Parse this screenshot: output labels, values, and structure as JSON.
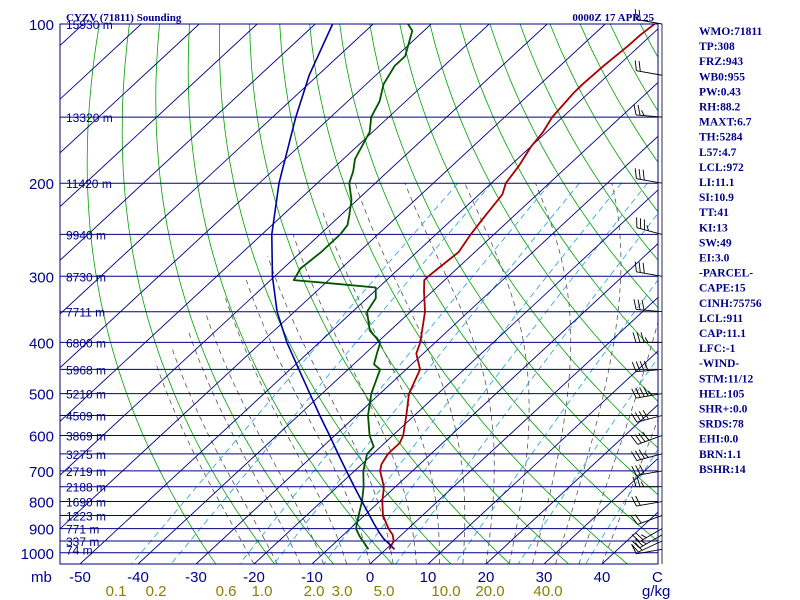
{
  "chart_data": {
    "type": "line",
    "title_left": "CYZV (71811) Sounding",
    "title_right": "0000Z 17 APR 25",
    "y_axis": {
      "scale": "log",
      "unit": "mb",
      "ticks": [
        100,
        200,
        300,
        400,
        500,
        600,
        700,
        800,
        900,
        1000
      ]
    },
    "x_axis": {
      "skew": true,
      "unit": "C",
      "ticks": [
        -50,
        -40,
        -30,
        -20,
        -10,
        0,
        10,
        20,
        30,
        40
      ]
    },
    "mixing_ratio": {
      "unit": "g/kg",
      "ticks": [
        "0.1",
        "0.2",
        "0.6",
        "1.0",
        "2.0",
        "3.0",
        "5.0",
        "10.0",
        "20.0",
        "40.0"
      ]
    },
    "heights": [
      {
        "p": 100,
        "label": "15930 m"
      },
      {
        "p": 150,
        "label": "13320 m"
      },
      {
        "p": 200,
        "label": "11420 m"
      },
      {
        "p": 250,
        "label": "9940 m"
      },
      {
        "p": 300,
        "label": "8730 m"
      },
      {
        "p": 350,
        "label": "7711 m"
      },
      {
        "p": 400,
        "label": "6800 m"
      },
      {
        "p": 450,
        "label": "5968 m"
      },
      {
        "p": 500,
        "label": "5210 m"
      },
      {
        "p": 550,
        "label": "4509 m"
      },
      {
        "p": 600,
        "label": "3869 m"
      },
      {
        "p": 650,
        "label": "3275 m"
      },
      {
        "p": 700,
        "label": "2719 m"
      },
      {
        "p": 750,
        "label": "2188 m"
      },
      {
        "p": 800,
        "label": "1690 m"
      },
      {
        "p": 850,
        "label": "1223 m"
      },
      {
        "p": 900,
        "label": "771 m"
      },
      {
        "p": 950,
        "label": "337 m"
      },
      {
        "p": 985,
        "label": "74 m"
      }
    ],
    "series": [
      {
        "name": "temperature",
        "color": "#a80000",
        "points": [
          [
            985,
            0.6
          ],
          [
            950,
            -0.2
          ],
          [
            925,
            -1.5
          ],
          [
            900,
            -3.4
          ],
          [
            850,
            -6.8
          ],
          [
            800,
            -9.5
          ],
          [
            750,
            -12.0
          ],
          [
            700,
            -15.6
          ],
          [
            680,
            -16.6
          ],
          [
            650,
            -17.4
          ],
          [
            620,
            -17.4
          ],
          [
            600,
            -18.2
          ],
          [
            550,
            -21.4
          ],
          [
            500,
            -25.0
          ],
          [
            480,
            -26.0
          ],
          [
            450,
            -27.6
          ],
          [
            420,
            -31.2
          ],
          [
            400,
            -32.6
          ],
          [
            350,
            -37.5
          ],
          [
            320,
            -41.5
          ],
          [
            305,
            -43.5
          ],
          [
            300,
            -43.5
          ],
          [
            290,
            -43.3
          ],
          [
            270,
            -42.8
          ],
          [
            250,
            -44.0
          ],
          [
            230,
            -45.0
          ],
          [
            210,
            -46.0
          ],
          [
            200,
            -47.5
          ],
          [
            185,
            -48.5
          ],
          [
            175,
            -49.5
          ],
          [
            170,
            -50.0
          ],
          [
            160,
            -50.6
          ],
          [
            150,
            -51.8
          ],
          [
            135,
            -52.6
          ],
          [
            130,
            -52.7
          ],
          [
            120,
            -52.5
          ],
          [
            110,
            -52.0
          ],
          [
            105,
            -51.9
          ],
          [
            100,
            -51.5
          ]
        ]
      },
      {
        "name": "dewpoint",
        "color": "#005500",
        "points": [
          [
            985,
            -3.0
          ],
          [
            950,
            -5.5
          ],
          [
            930,
            -7.0
          ],
          [
            900,
            -9.0
          ],
          [
            850,
            -11.0
          ],
          [
            800,
            -13.0
          ],
          [
            750,
            -15.5
          ],
          [
            700,
            -18.5
          ],
          [
            650,
            -21.0
          ],
          [
            630,
            -21.2
          ],
          [
            600,
            -24.0
          ],
          [
            550,
            -28.0
          ],
          [
            500,
            -31.5
          ],
          [
            450,
            -34.5
          ],
          [
            440,
            -36.5
          ],
          [
            420,
            -38.0
          ],
          [
            400,
            -39.5
          ],
          [
            380,
            -43.5
          ],
          [
            350,
            -47.5
          ],
          [
            330,
            -48.5
          ],
          [
            315,
            -50.5
          ],
          [
            310,
            -58.0
          ],
          [
            305,
            -66.0
          ],
          [
            290,
            -67.0
          ],
          [
            270,
            -66.5
          ],
          [
            250,
            -66.5
          ],
          [
            240,
            -67.0
          ],
          [
            230,
            -68.5
          ],
          [
            215,
            -71.0
          ],
          [
            200,
            -74.5
          ],
          [
            190,
            -76.0
          ],
          [
            180,
            -78.0
          ],
          [
            160,
            -80.5
          ],
          [
            150,
            -83.0
          ],
          [
            140,
            -84.5
          ],
          [
            130,
            -87.0
          ],
          [
            120,
            -88.5
          ],
          [
            115,
            -88.5
          ],
          [
            108,
            -90.5
          ],
          [
            103,
            -92.0
          ],
          [
            100,
            -94.0
          ]
        ]
      },
      {
        "name": "parcel",
        "color": "#0000a0",
        "points": [
          [
            985,
            1.5
          ],
          [
            960,
            -0.6
          ],
          [
            940,
            -2.4
          ],
          [
            911,
            -4.6
          ],
          [
            880,
            -6.9
          ],
          [
            850,
            -9.1
          ],
          [
            800,
            -13.0
          ],
          [
            750,
            -17.1
          ],
          [
            700,
            -21.4
          ],
          [
            650,
            -26.0
          ],
          [
            600,
            -30.9
          ],
          [
            550,
            -36.3
          ],
          [
            500,
            -42.1
          ],
          [
            450,
            -48.5
          ],
          [
            400,
            -55.6
          ],
          [
            350,
            -63.0
          ],
          [
            300,
            -70.4
          ],
          [
            250,
            -78.3
          ],
          [
            200,
            -86.6
          ],
          [
            150,
            -96.0
          ],
          [
            125,
            -101.5
          ],
          [
            100,
            -107.0
          ]
        ]
      }
    ],
    "wind_flags": [
      {
        "p": 985,
        "dir": 260,
        "spd": 10
      },
      {
        "p": 950,
        "dir": 245,
        "spd": 20
      },
      {
        "p": 925,
        "dir": 240,
        "spd": 25
      },
      {
        "p": 900,
        "dir": 240,
        "spd": 25
      },
      {
        "p": 850,
        "dir": 250,
        "spd": 20
      },
      {
        "p": 800,
        "dir": 260,
        "spd": 20
      },
      {
        "p": 750,
        "dir": 270,
        "spd": 25
      },
      {
        "p": 700,
        "dir": 260,
        "spd": 30
      },
      {
        "p": 650,
        "dir": 255,
        "spd": 35
      },
      {
        "p": 600,
        "dir": 250,
        "spd": 40
      },
      {
        "p": 550,
        "dir": 255,
        "spd": 40
      },
      {
        "p": 500,
        "dir": 260,
        "spd": 45
      },
      {
        "p": 450,
        "dir": 265,
        "spd": 40
      },
      {
        "p": 400,
        "dir": 270,
        "spd": 35
      },
      {
        "p": 350,
        "dir": 275,
        "spd": 30
      },
      {
        "p": 300,
        "dir": 280,
        "spd": 30
      },
      {
        "p": 250,
        "dir": 285,
        "spd": 35
      },
      {
        "p": 200,
        "dir": 280,
        "spd": 30
      },
      {
        "p": 150,
        "dir": 275,
        "spd": 25
      },
      {
        "p": 125,
        "dir": 280,
        "spd": 20
      },
      {
        "p": 100,
        "dir": 280,
        "spd": 20
      }
    ],
    "indices": [
      "WMO:71811",
      "TP:308",
      "FRZ:943",
      "WB0:955",
      "PW:0.43",
      "RH:88.2",
      "MAXT:6.7",
      "TH:5284",
      "L57:4.7",
      "LCL:972",
      "LI:11.1",
      "SI:10.9",
      "TT:41",
      "KI:13",
      "SW:49",
      "EI:3.0",
      "-PARCEL-",
      "CAPE:15",
      "CINH:75756",
      "LCL:911",
      "CAP:11.1",
      "LFC:-1",
      "-WIND-",
      "STM:11/12",
      "HEL:105",
      "SHR+:0.0",
      "SRDS:78",
      "EHI:0.0",
      "BRN:1.1",
      "BSHR:14"
    ],
    "colors": {
      "isobar": "#000080",
      "isotherm": "#000080",
      "dry_adiabat": "#00a000",
      "moist_adiabat": "#555555",
      "mixing_ratio": "#33aadd"
    }
  }
}
